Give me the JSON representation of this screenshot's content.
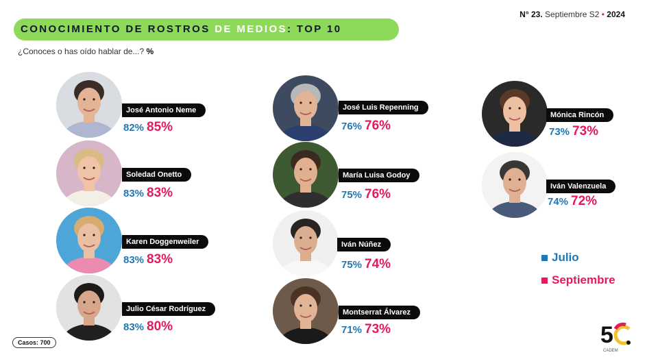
{
  "header": {
    "no_symbol": "N°",
    "issue_number": "23.",
    "issue_period": "Septiembre S2",
    "separator": "•",
    "year": "2024"
  },
  "title": {
    "part1": "CONOCIMIENTO DE ROSTROS",
    "part2": "DE MEDIOS",
    "part3": ": TOP 10"
  },
  "question": {
    "text": "¿Conoces o has oído hablar de...?",
    "unit": "%"
  },
  "legend": [
    {
      "label": "Julio",
      "color": "#1f78b4"
    },
    {
      "label": "Septiembre",
      "color": "#e5195b"
    }
  ],
  "cases": "Casos: 700",
  "logo": {
    "text": "5C",
    "sub": "CADEM"
  },
  "colors": {
    "julio": "#1f78b4",
    "septiembre": "#e5195b",
    "title_bar": "#8ed85a"
  },
  "chart_data": {
    "type": "table",
    "title": "CONOCIMIENTO DE ROSTROS DE MEDIOS: TOP 10",
    "unit": "%",
    "series_names": [
      "Julio",
      "Septiembre"
    ],
    "people": [
      {
        "name": "José Antonio Neme",
        "julio": "82%",
        "septiembre": "85%"
      },
      {
        "name": "Soledad Onetto",
        "julio": "83%",
        "septiembre": "83%"
      },
      {
        "name": "Karen Doggenweiler",
        "julio": "83%",
        "septiembre": "83%"
      },
      {
        "name": "Julio César Rodríguez",
        "julio": "83%",
        "septiembre": "80%"
      },
      {
        "name": "José Luis Repenning",
        "julio": "76%",
        "septiembre": "76%"
      },
      {
        "name": "María Luisa Godoy",
        "julio": "75%",
        "septiembre": "76%"
      },
      {
        "name": "Iván Núñez",
        "julio": "75%",
        "septiembre": "74%"
      },
      {
        "name": "Montserrat Álvarez",
        "julio": "71%",
        "septiembre": "73%"
      },
      {
        "name": "Mónica Rincón",
        "julio": "73%",
        "septiembre": "73%"
      },
      {
        "name": "Iván Valenzuela",
        "julio": "74%",
        "septiembre": "72%"
      }
    ]
  }
}
